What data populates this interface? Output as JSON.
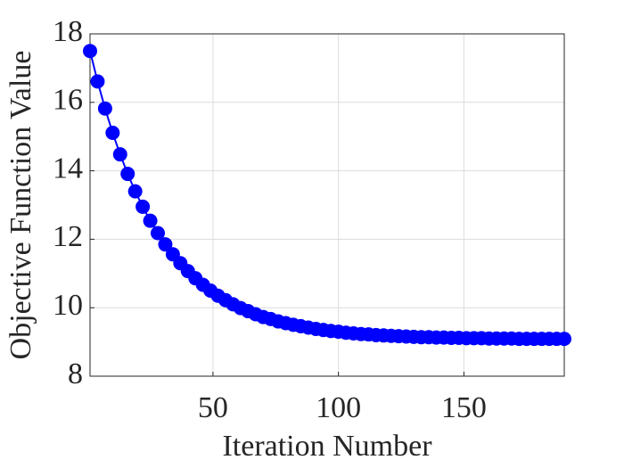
{
  "chart_data": {
    "type": "line",
    "xlabel": "Iteration Number",
    "ylabel": "Objective Function Value",
    "x": [
      1,
      4,
      7,
      10,
      13,
      16,
      19,
      22,
      25,
      28,
      31,
      34,
      37,
      40,
      43,
      46,
      49,
      52,
      55,
      58,
      61,
      64,
      67,
      70,
      73,
      76,
      79,
      82,
      85,
      88,
      91,
      94,
      97,
      100,
      103,
      106,
      109,
      112,
      115,
      118,
      121,
      124,
      127,
      130,
      133,
      136,
      139,
      142,
      145,
      148,
      151,
      154,
      157,
      160,
      163,
      166,
      169,
      172,
      175,
      178,
      181,
      184,
      187,
      190
    ],
    "series": [
      {
        "color": "#0000ff",
        "values": [
          17.5,
          16.61,
          15.82,
          15.11,
          14.48,
          13.91,
          13.4,
          12.95,
          12.54,
          12.18,
          11.85,
          11.56,
          11.3,
          11.07,
          10.86,
          10.67,
          10.5,
          10.35,
          10.22,
          10.1,
          9.99,
          9.9,
          9.81,
          9.73,
          9.67,
          9.6,
          9.55,
          9.5,
          9.46,
          9.42,
          9.38,
          9.35,
          9.32,
          9.3,
          9.27,
          9.25,
          9.23,
          9.22,
          9.2,
          9.19,
          9.18,
          9.17,
          9.16,
          9.15,
          9.14,
          9.14,
          9.13,
          9.13,
          9.12,
          9.12,
          9.11,
          9.11,
          9.11,
          9.1,
          9.1,
          9.1,
          9.1,
          9.09,
          9.09,
          9.09,
          9.09,
          9.09,
          9.09,
          9.09
        ]
      }
    ],
    "xlim": [
      1,
      190
    ],
    "xticks": [
      50,
      100,
      150
    ],
    "ylim": [
      8,
      18
    ],
    "yticks": [
      8,
      10,
      12,
      14,
      16,
      18
    ],
    "grid": true
  }
}
